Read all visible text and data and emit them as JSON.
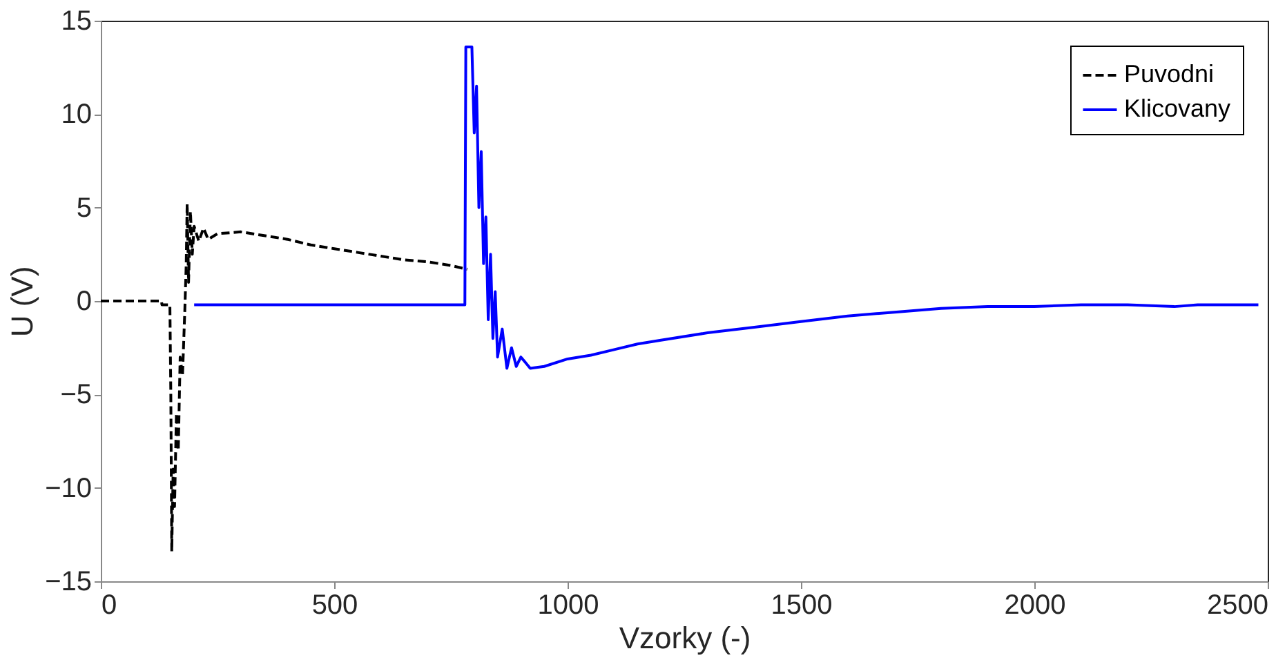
{
  "chart_data": {
    "type": "line",
    "xlabel": "Vzorky (-)",
    "ylabel": "U (V)",
    "xlim": [
      0,
      2500
    ],
    "ylim": [
      -15,
      15
    ],
    "xticks": [
      0,
      500,
      1000,
      1500,
      2000,
      2500
    ],
    "yticks": [
      -15,
      -10,
      -5,
      0,
      5,
      10,
      15
    ],
    "grid": false,
    "legend": "top right",
    "marker": "none",
    "series": [
      {
        "name": "Puvodni",
        "color": "#000000",
        "line_style": "dashed",
        "x": [
          0,
          130,
          131,
          148,
          150,
          152,
          155,
          158,
          162,
          166,
          170,
          175,
          180,
          183,
          185,
          188,
          192,
          196,
          200,
          210,
          220,
          230,
          250,
          300,
          350,
          400,
          450,
          500,
          550,
          600,
          650,
          700,
          750,
          785
        ],
        "values": [
          0,
          0,
          -0.2,
          -0.2,
          -5,
          -13.4,
          -9,
          -11,
          -6,
          -8,
          -3,
          -4,
          -0.5,
          2,
          5.2,
          1,
          4.8,
          2.5,
          4,
          3.2,
          3.9,
          3.3,
          3.6,
          3.7,
          3.5,
          3.3,
          3.0,
          2.8,
          2.6,
          2.4,
          2.2,
          2.1,
          1.9,
          1.7
        ]
      },
      {
        "name": "Klicovany",
        "color": "#0000ff",
        "line_style": "solid",
        "x": [
          200,
          780,
          782,
          795,
          800,
          805,
          810,
          815,
          820,
          825,
          830,
          835,
          840,
          845,
          850,
          860,
          870,
          880,
          890,
          900,
          920,
          950,
          1000,
          1050,
          1100,
          1150,
          1200,
          1300,
          1400,
          1500,
          1600,
          1700,
          1800,
          1900,
          2000,
          2100,
          2200,
          2300,
          2350,
          2480
        ],
        "values": [
          -0.2,
          -0.2,
          13.6,
          13.6,
          9,
          11.5,
          5,
          8,
          2,
          4.5,
          -1,
          2.5,
          -2,
          0.5,
          -3,
          -1.5,
          -3.6,
          -2.5,
          -3.5,
          -3,
          -3.6,
          -3.5,
          -3.1,
          -2.9,
          -2.6,
          -2.3,
          -2.1,
          -1.7,
          -1.4,
          -1.1,
          -0.8,
          -0.6,
          -0.4,
          -0.3,
          -0.3,
          -0.2,
          -0.2,
          -0.3,
          -0.2,
          -0.2
        ]
      }
    ]
  }
}
